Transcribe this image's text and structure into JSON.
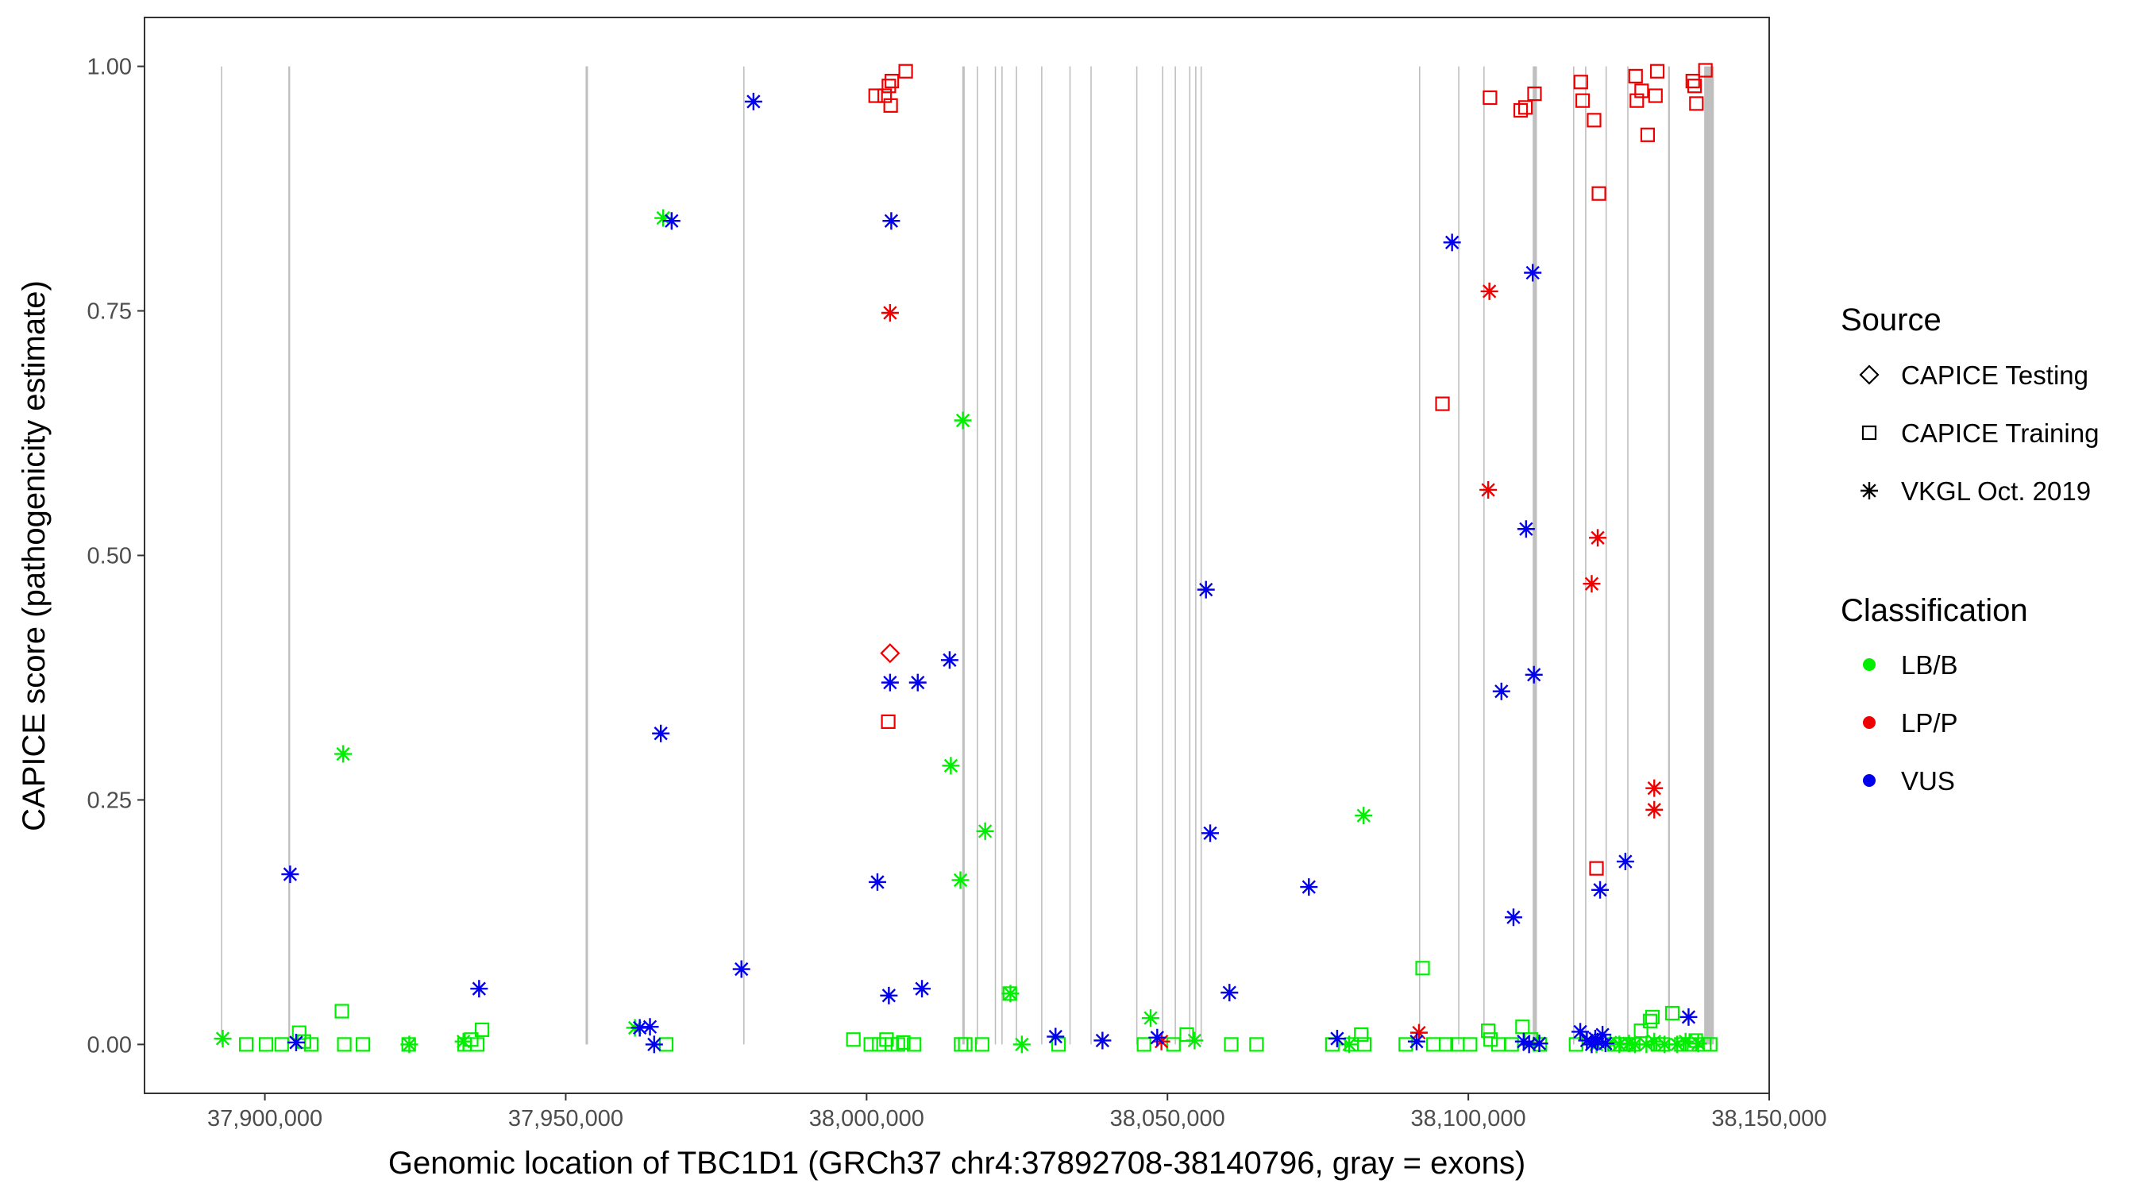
{
  "chart_data": {
    "type": "scatter",
    "xlabel": "Genomic location of TBC1D1 (GRCh37 chr4:37892708-38140796, gray = exons)",
    "ylabel": "CAPICE score (pathogenicity estimate)",
    "xlim": [
      37880000,
      38150000
    ],
    "ylim": [
      -0.05,
      1.05
    ],
    "x_ticks": [
      37900000,
      37950000,
      38000000,
      38050000,
      38100000,
      38150000
    ],
    "x_tick_labels": [
      "37,900,000",
      "37,950,000",
      "38,000,000",
      "38,050,000",
      "38,100,000",
      "38,150,000"
    ],
    "y_ticks": [
      0,
      0.25,
      0.5,
      0.75,
      1.0
    ],
    "y_tick_labels": [
      "0.00",
      "0.25",
      "0.50",
      "0.75",
      "1.00"
    ],
    "grid": false,
    "colors": {
      "LB/B": "#00ee00",
      "LP/P": "#ee0000",
      "VUS": "#0000ee",
      "exon": "#bfbfbf"
    },
    "exons": [
      {
        "start": 37892700,
        "end": 37892900
      },
      {
        "start": 37903900,
        "end": 37904200
      },
      {
        "start": 37953300,
        "end": 37953700
      },
      {
        "start": 37979500,
        "end": 37979600
      },
      {
        "start": 38015900,
        "end": 38016300
      },
      {
        "start": 38018300,
        "end": 38018400
      },
      {
        "start": 38021300,
        "end": 38021400
      },
      {
        "start": 38022400,
        "end": 38022500
      },
      {
        "start": 38024800,
        "end": 38024900
      },
      {
        "start": 38029000,
        "end": 38029100
      },
      {
        "start": 38033700,
        "end": 38033800
      },
      {
        "start": 38037200,
        "end": 38037300
      },
      {
        "start": 38044800,
        "end": 38044900
      },
      {
        "start": 38049100,
        "end": 38049200
      },
      {
        "start": 38051200,
        "end": 38051300
      },
      {
        "start": 38053600,
        "end": 38053700
      },
      {
        "start": 38054600,
        "end": 38054700
      },
      {
        "start": 38055500,
        "end": 38055600
      },
      {
        "start": 38091800,
        "end": 38091900
      },
      {
        "start": 38098300,
        "end": 38098400
      },
      {
        "start": 38102500,
        "end": 38102600
      },
      {
        "start": 38110700,
        "end": 38111400
      },
      {
        "start": 38117400,
        "end": 38117500
      },
      {
        "start": 38119400,
        "end": 38119500
      },
      {
        "start": 38122800,
        "end": 38122900
      },
      {
        "start": 38126400,
        "end": 38126500
      },
      {
        "start": 38133200,
        "end": 38133500
      },
      {
        "start": 38139200,
        "end": 38140800
      }
    ],
    "legend": {
      "source_title": "Source",
      "source_items": [
        {
          "label": "CAPICE Testing",
          "shape": "diamond"
        },
        {
          "label": "CAPICE Training",
          "shape": "square"
        },
        {
          "label": "VKGL Oct. 2019",
          "shape": "asterisk"
        }
      ],
      "classification_title": "Classification",
      "classification_items": [
        {
          "label": "LB/B",
          "color": "#00ee00"
        },
        {
          "label": "LP/P",
          "color": "#ee0000"
        },
        {
          "label": "VUS",
          "color": "#0000ee"
        }
      ]
    },
    "series": [
      {
        "source": "CAPICE Testing",
        "classification": "LP/P",
        "points": [
          [
            38003900,
            0.4
          ]
        ]
      },
      {
        "source": "CAPICE Training",
        "classification": "LP/P",
        "points": [
          [
            38001500,
            0.97
          ],
          [
            38003000,
            0.97
          ],
          [
            38003700,
            0.98
          ],
          [
            38004000,
            0.96
          ],
          [
            38004200,
            0.985
          ],
          [
            38006500,
            0.995
          ],
          [
            38003600,
            0.33
          ],
          [
            38095700,
            0.655
          ],
          [
            38103600,
            0.968
          ],
          [
            38108700,
            0.955
          ],
          [
            38109500,
            0.958
          ],
          [
            38111000,
            0.972
          ],
          [
            38118700,
            0.984
          ],
          [
            38119000,
            0.965
          ],
          [
            38120900,
            0.945
          ],
          [
            38121700,
            0.87
          ],
          [
            38121300,
            0.18
          ],
          [
            38127800,
            0.99
          ],
          [
            38128000,
            0.965
          ],
          [
            38128800,
            0.975
          ],
          [
            38129800,
            0.93
          ],
          [
            38131100,
            0.97
          ],
          [
            38131400,
            0.995
          ],
          [
            38137300,
            0.985
          ],
          [
            38137600,
            0.98
          ],
          [
            38137900,
            0.962
          ],
          [
            38139400,
            0.996
          ]
        ]
      },
      {
        "source": "CAPICE Training",
        "classification": "LB/B",
        "points": [
          [
            37896900,
            0.0
          ],
          [
            37900200,
            0.0
          ],
          [
            37902800,
            0.0
          ],
          [
            37905700,
            0.012
          ],
          [
            37906500,
            0.003
          ],
          [
            37907700,
            0.0
          ],
          [
            37912800,
            0.034
          ],
          [
            37913200,
            0.0
          ],
          [
            37916300,
            0.0
          ],
          [
            37923900,
            0.0
          ],
          [
            37933200,
            0.0
          ],
          [
            37934300,
            0.005
          ],
          [
            37935300,
            0.0
          ],
          [
            37936100,
            0.015
          ],
          [
            37966700,
            0.0
          ],
          [
            37997800,
            0.005
          ],
          [
            38000700,
            0.0
          ],
          [
            38002100,
            0.0
          ],
          [
            38003300,
            0.005
          ],
          [
            38004200,
            0.0
          ],
          [
            38005200,
            0.0
          ],
          [
            38006100,
            0.002
          ],
          [
            38007900,
            0.0
          ],
          [
            38015700,
            0.0
          ],
          [
            38016400,
            0.0
          ],
          [
            38019200,
            0.0
          ],
          [
            38023800,
            0.052
          ],
          [
            38031900,
            0.0
          ],
          [
            38046100,
            0.0
          ],
          [
            38051000,
            0.0
          ],
          [
            38053200,
            0.01
          ],
          [
            38060600,
            0.0
          ],
          [
            38064800,
            0.0
          ],
          [
            38077400,
            0.0
          ],
          [
            38080600,
            0.0
          ],
          [
            38082200,
            0.01
          ],
          [
            38082700,
            0.0
          ],
          [
            38089600,
            0.0
          ],
          [
            38092400,
            0.078
          ],
          [
            38094200,
            0.0
          ],
          [
            38096300,
            0.0
          ],
          [
            38098200,
            0.0
          ],
          [
            38100300,
            0.0
          ],
          [
            38103300,
            0.014
          ],
          [
            38103700,
            0.005
          ],
          [
            38105000,
            0.0
          ],
          [
            38107200,
            0.0
          ],
          [
            38109000,
            0.018
          ],
          [
            38110400,
            0.005
          ],
          [
            38111900,
            0.0
          ],
          [
            38117900,
            0.0
          ],
          [
            38124300,
            0.0
          ],
          [
            38125300,
            0.0
          ],
          [
            38126200,
            0.0
          ],
          [
            38127400,
            0.0
          ],
          [
            38128700,
            0.014
          ],
          [
            38130200,
            0.024
          ],
          [
            38130600,
            0.028
          ],
          [
            38131500,
            0.0
          ],
          [
            38132300,
            0.0
          ],
          [
            38133900,
            0.032
          ],
          [
            38135400,
            0.0
          ],
          [
            38136800,
            0.0
          ],
          [
            38137800,
            0.004
          ],
          [
            38139200,
            0.0
          ],
          [
            38140200,
            0.0
          ]
        ]
      },
      {
        "source": "VKGL Oct. 2019",
        "classification": "LB/B",
        "points": [
          [
            37893000,
            0.006
          ],
          [
            37913000,
            0.297
          ],
          [
            37924000,
            0.0
          ],
          [
            37933000,
            0.003
          ],
          [
            37961500,
            0.017
          ],
          [
            37966200,
            0.845
          ],
          [
            38014000,
            0.285
          ],
          [
            38015600,
            0.168
          ],
          [
            38016000,
            0.638
          ],
          [
            38019700,
            0.218
          ],
          [
            38023900,
            0.052
          ],
          [
            38025800,
            0.0
          ],
          [
            38047200,
            0.027
          ],
          [
            38054500,
            0.004
          ],
          [
            38080200,
            0.0
          ],
          [
            38082600,
            0.234
          ],
          [
            38121300,
            0.0
          ],
          [
            38123600,
            0.002
          ],
          [
            38125100,
            0.0
          ],
          [
            38126700,
            0.001
          ],
          [
            38127700,
            0.0
          ],
          [
            38129600,
            0.0
          ],
          [
            38130900,
            0.003
          ],
          [
            38132600,
            0.0
          ],
          [
            38134700,
            0.0
          ],
          [
            38136100,
            0.003
          ],
          [
            38138200,
            0.001
          ]
        ]
      },
      {
        "source": "VKGL Oct. 2019",
        "classification": "LP/P",
        "points": [
          [
            38003900,
            0.748
          ],
          [
            38049000,
            0.003
          ],
          [
            38091800,
            0.012
          ],
          [
            38103500,
            0.77
          ],
          [
            38103300,
            0.567
          ],
          [
            38120500,
            0.471
          ],
          [
            38121500,
            0.518
          ],
          [
            38130900,
            0.262
          ],
          [
            38130900,
            0.24
          ]
        ]
      },
      {
        "source": "VKGL Oct. 2019",
        "classification": "VUS",
        "points": [
          [
            37904200,
            0.174
          ],
          [
            37905200,
            0.002
          ],
          [
            37935600,
            0.057
          ],
          [
            37962300,
            0.017
          ],
          [
            37964000,
            0.018
          ],
          [
            37964700,
            0.0
          ],
          [
            37965800,
            0.318
          ],
          [
            37967600,
            0.842
          ],
          [
            37979200,
            0.077
          ],
          [
            37981200,
            0.964
          ],
          [
            38001800,
            0.166
          ],
          [
            38003700,
            0.05
          ],
          [
            38003900,
            0.37
          ],
          [
            38004100,
            0.842
          ],
          [
            38008500,
            0.37
          ],
          [
            38009200,
            0.057
          ],
          [
            38013800,
            0.393
          ],
          [
            38031400,
            0.008
          ],
          [
            38039200,
            0.004
          ],
          [
            38048300,
            0.007
          ],
          [
            38056400,
            0.465
          ],
          [
            38057100,
            0.216
          ],
          [
            38060300,
            0.053
          ],
          [
            38073500,
            0.161
          ],
          [
            38078200,
            0.006
          ],
          [
            38091400,
            0.003
          ],
          [
            38097300,
            0.82
          ],
          [
            38105500,
            0.361
          ],
          [
            38107500,
            0.13
          ],
          [
            38109200,
            0.003
          ],
          [
            38109600,
            0.527
          ],
          [
            38110100,
            0.0
          ],
          [
            38110700,
            0.789
          ],
          [
            38110900,
            0.378
          ],
          [
            38111800,
            0.001
          ],
          [
            38118600,
            0.013
          ],
          [
            38119700,
            0.004
          ],
          [
            38120500,
            0.0
          ],
          [
            38121100,
            0.006
          ],
          [
            38121500,
            0.003
          ],
          [
            38121900,
            0.158
          ],
          [
            38122300,
            0.01
          ],
          [
            38122800,
            0.001
          ],
          [
            38126100,
            0.187
          ],
          [
            38136600,
            0.028
          ]
        ]
      }
    ]
  }
}
